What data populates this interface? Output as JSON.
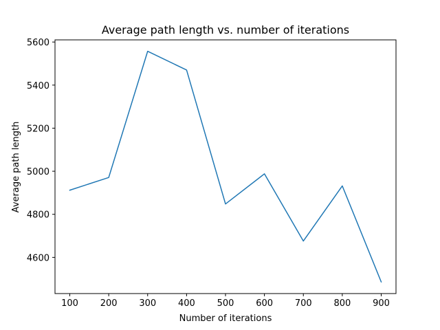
{
  "chart_data": {
    "type": "line",
    "title": "Average path length vs. number of iterations",
    "xlabel": "Number of iterations",
    "ylabel": "Average path length",
    "x": [
      100,
      200,
      300,
      400,
      500,
      600,
      700,
      800,
      900
    ],
    "series": [
      {
        "values": [
          4912,
          4971,
          5557,
          5470,
          4848,
          4988,
          4676,
          4932,
          4486
        ]
      }
    ],
    "xlim": [
      62,
      938
    ],
    "ylim": [
      4432,
      5610
    ],
    "xticks": [
      100,
      200,
      300,
      400,
      500,
      600,
      700,
      800,
      900
    ],
    "yticks": [
      4600,
      4800,
      5000,
      5200,
      5400,
      5600
    ],
    "grid": false,
    "line_color": "#1f77b4"
  }
}
